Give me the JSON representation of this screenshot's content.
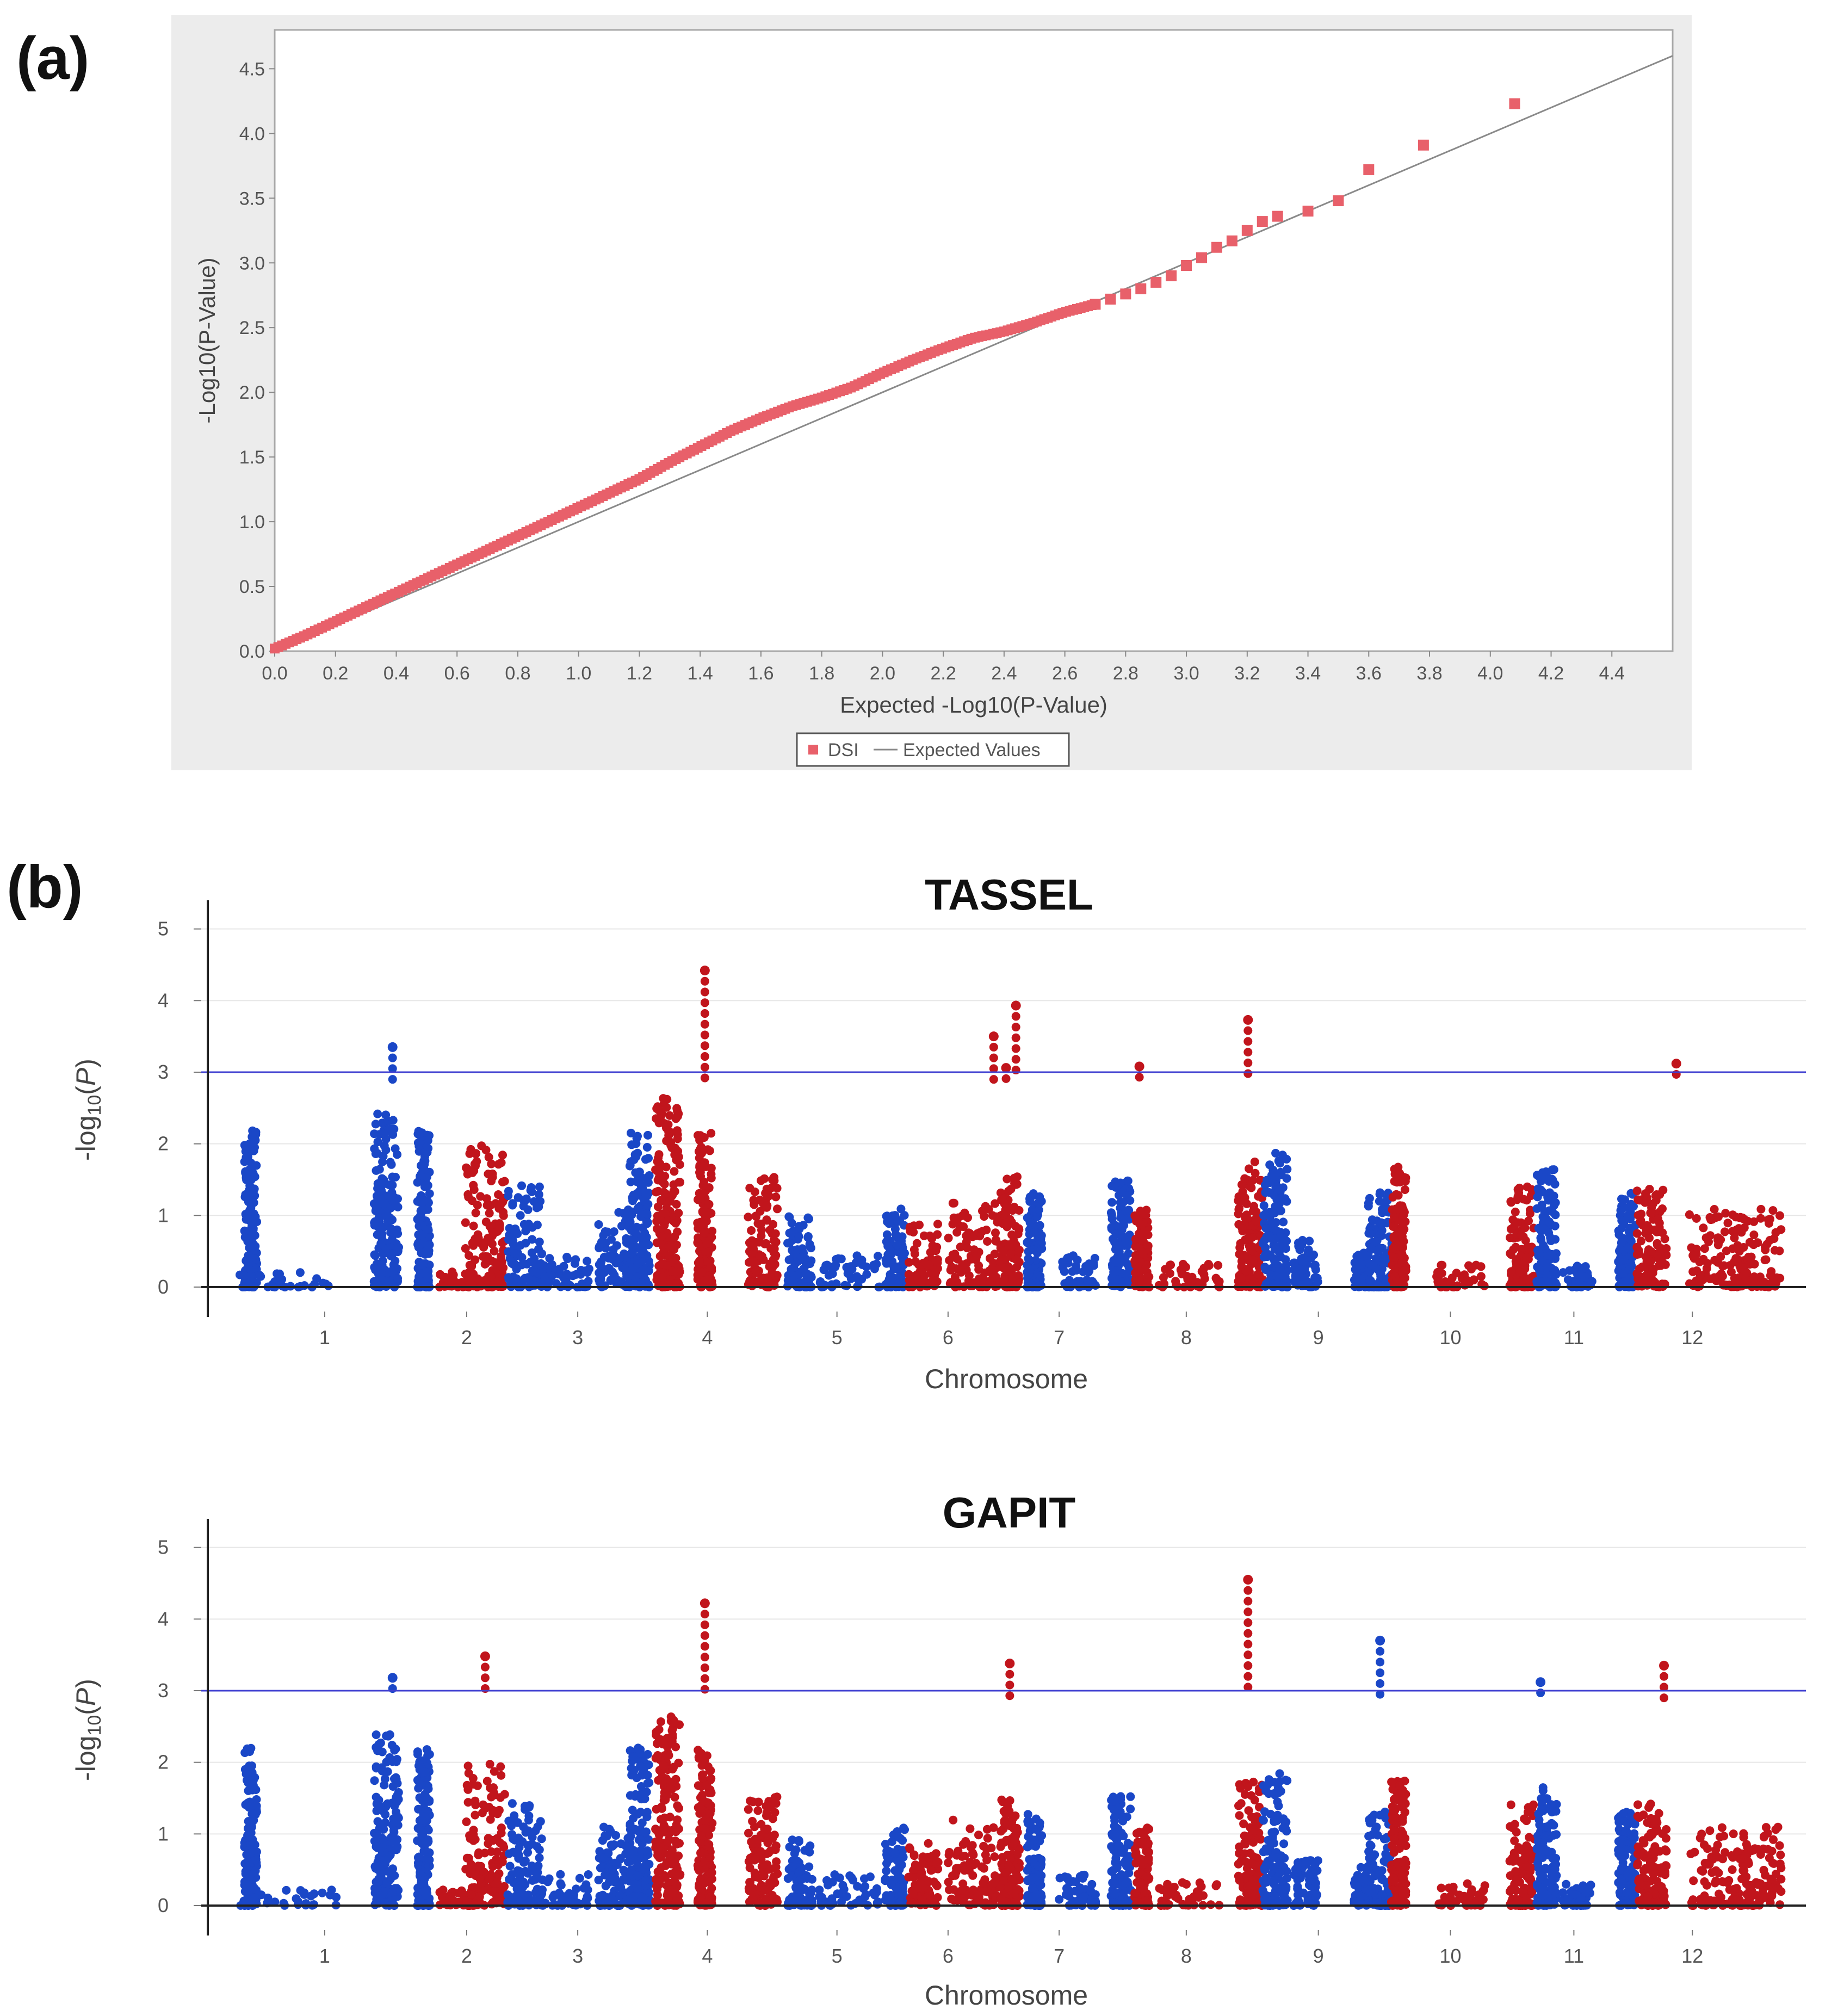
{
  "colors": {
    "qq_points": "#e8606a",
    "qq_line": "#8a8a8a",
    "qq_panel_bg": "#ececec",
    "manhattan_blue": "#1a47c7",
    "manhattan_red": "#c1151c",
    "threshold_line": "#3f3fd0"
  },
  "panels": {
    "a": {
      "letter": "(a)"
    },
    "b": {
      "letter": "(b)"
    }
  },
  "chart_data": [
    {
      "type": "scatter",
      "title": "",
      "xlabel": "Expected -Log10(P-Value)",
      "ylabel": "-Log10(P-Value)",
      "xlim": [
        0.0,
        4.6
      ],
      "ylim": [
        0.0,
        4.8
      ],
      "xticks": [
        "0.0",
        "0.2",
        "0.4",
        "0.6",
        "0.8",
        "1.0",
        "1.2",
        "1.4",
        "1.6",
        "1.8",
        "2.0",
        "2.2",
        "2.4",
        "2.6",
        "2.8",
        "3.0",
        "3.2",
        "3.4",
        "3.6",
        "3.8",
        "4.0",
        "4.2",
        "4.4"
      ],
      "yticks": [
        "0.0",
        "0.5",
        "1.0",
        "1.5",
        "2.0",
        "2.5",
        "3.0",
        "3.5",
        "4.0",
        "4.5"
      ],
      "legend": {
        "position": "bottom-center",
        "points_label": "DSI",
        "line_label": "Expected Values"
      },
      "expected_line": {
        "x": [
          0.0,
          4.6
        ],
        "y": [
          0.0,
          4.6
        ]
      },
      "series": [
        {
          "name": "DSI",
          "x": [
            0.0,
            0.1,
            0.2,
            0.3,
            0.4,
            0.5,
            0.6,
            0.7,
            0.8,
            0.9,
            1.0,
            1.1,
            1.2,
            1.3,
            1.4,
            1.5,
            1.6,
            1.7,
            1.8,
            1.9,
            2.0,
            2.1,
            2.2,
            2.3,
            2.4,
            2.5,
            2.6,
            2.7,
            2.75,
            2.8,
            2.85,
            2.9,
            2.95,
            3.0,
            3.05,
            3.1,
            3.15,
            3.2,
            3.25,
            3.3,
            3.4,
            3.5,
            3.6,
            3.78,
            4.08
          ],
          "y": [
            0.02,
            0.12,
            0.23,
            0.34,
            0.45,
            0.56,
            0.67,
            0.78,
            0.89,
            1.0,
            1.11,
            1.22,
            1.33,
            1.46,
            1.58,
            1.7,
            1.8,
            1.89,
            1.96,
            2.04,
            2.15,
            2.25,
            2.34,
            2.42,
            2.47,
            2.54,
            2.62,
            2.68,
            2.72,
            2.76,
            2.8,
            2.85,
            2.9,
            2.98,
            3.04,
            3.12,
            3.17,
            3.25,
            3.32,
            3.36,
            3.4,
            3.48,
            3.72,
            3.91,
            4.23
          ]
        }
      ]
    },
    {
      "type": "scatter",
      "subtype": "manhattan",
      "title": "TASSEL",
      "xlabel": "Chromosome",
      "ylabel": "-log10(P)",
      "ylim": [
        0,
        5.4
      ],
      "yticks": [
        "0",
        "1",
        "2",
        "3",
        "4",
        "5"
      ],
      "threshold": 3.0,
      "chromosomes": [
        "1",
        "2",
        "3",
        "4",
        "5",
        "6",
        "7",
        "8",
        "9",
        "10",
        "11",
        "12"
      ],
      "peak_markers": [
        {
          "x": 4.08,
          "y": 4.42
        },
        {
          "x": 6.6,
          "y": 3.93
        },
        {
          "x": 8.48,
          "y": 3.73
        },
        {
          "x": 6.42,
          "y": 3.5
        },
        {
          "x": 1.55,
          "y": 3.35
        },
        {
          "x": 11.95,
          "y": 3.12
        },
        {
          "x": 7.6,
          "y": 3.08
        },
        {
          "x": 6.52,
          "y": 3.06
        }
      ]
    },
    {
      "type": "scatter",
      "subtype": "manhattan",
      "title": "GAPIT",
      "xlabel": "Chromosome",
      "ylabel": "-log10(P)",
      "ylim": [
        0,
        5.4
      ],
      "yticks": [
        "0",
        "1",
        "2",
        "3",
        "4",
        "5"
      ],
      "threshold": 3.0,
      "chromosomes": [
        "1",
        "2",
        "3",
        "4",
        "5",
        "6",
        "7",
        "8",
        "9",
        "10",
        "11",
        "12"
      ],
      "peak_markers": [
        {
          "x": 8.48,
          "y": 4.55
        },
        {
          "x": 4.08,
          "y": 4.22
        },
        {
          "x": 9.55,
          "y": 3.7
        },
        {
          "x": 2.3,
          "y": 3.48
        },
        {
          "x": 6.55,
          "y": 3.38
        },
        {
          "x": 11.85,
          "y": 3.35
        },
        {
          "x": 1.55,
          "y": 3.18
        },
        {
          "x": 10.85,
          "y": 3.12
        }
      ]
    }
  ]
}
